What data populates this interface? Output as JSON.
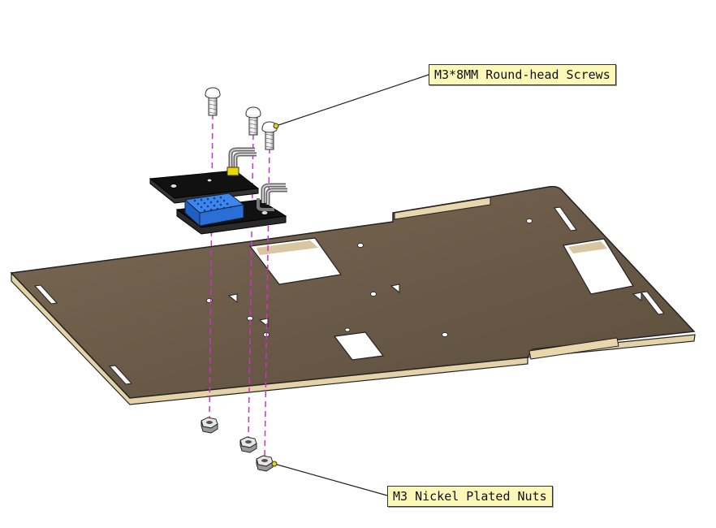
{
  "callouts": {
    "screws": "M3*8MM Round-head Screws",
    "nuts": "M3 Nickel Plated Nuts"
  },
  "colors": {
    "board": "#6e5d4a",
    "board_edge": "#e2cfa6",
    "sensor": "#2a6fd8",
    "callout_bg": "#fbf8b8",
    "guide": "#cc33cc"
  }
}
